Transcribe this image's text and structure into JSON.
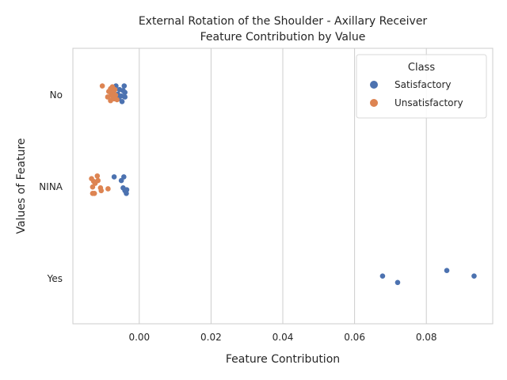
{
  "chart_data": {
    "type": "scatter",
    "title": "External Rotation of the Shoulder - Axillary Receiver",
    "subtitle": "Feature Contribution by Value",
    "xlabel": "Feature Contribution",
    "ylabel": "Values of Feature",
    "xlim": [
      -0.0185,
      0.0985
    ],
    "x_ticks": [
      "0.00",
      "0.02",
      "0.04",
      "0.06",
      "0.08"
    ],
    "x_tick_values": [
      0.0,
      0.02,
      0.04,
      0.06,
      0.08
    ],
    "categories": [
      "No",
      "NINA",
      "Yes"
    ],
    "grid": "vertical",
    "legend": {
      "title": "Class",
      "placement": "top-right"
    },
    "series": [
      {
        "name": "Satisfactory",
        "color": "#4c72b0",
        "points": [
          {
            "category": "No",
            "x": -0.0065,
            "jitter": -0.09
          },
          {
            "category": "No",
            "x": -0.0042,
            "jitter": -0.09
          },
          {
            "category": "No",
            "x": -0.0055,
            "jitter": -0.05
          },
          {
            "category": "No",
            "x": -0.0045,
            "jitter": -0.04
          },
          {
            "category": "No",
            "x": -0.004,
            "jitter": -0.02
          },
          {
            "category": "No",
            "x": -0.006,
            "jitter": 0.0
          },
          {
            "category": "No",
            "x": -0.005,
            "jitter": 0.02
          },
          {
            "category": "No",
            "x": -0.004,
            "jitter": 0.03
          },
          {
            "category": "No",
            "x": -0.0058,
            "jitter": 0.05
          },
          {
            "category": "No",
            "x": -0.0048,
            "jitter": 0.08
          },
          {
            "category": "NINA",
            "x": -0.007,
            "jitter": -0.1
          },
          {
            "category": "NINA",
            "x": -0.0043,
            "jitter": -0.1
          },
          {
            "category": "NINA",
            "x": -0.005,
            "jitter": -0.06
          },
          {
            "category": "NINA",
            "x": -0.0045,
            "jitter": 0.02
          },
          {
            "category": "NINA",
            "x": -0.0035,
            "jitter": 0.04
          },
          {
            "category": "NINA",
            "x": -0.004,
            "jitter": 0.05
          },
          {
            "category": "NINA",
            "x": -0.0036,
            "jitter": 0.08
          },
          {
            "category": "Yes",
            "x": 0.0857,
            "jitter": -0.08
          },
          {
            "category": "Yes",
            "x": 0.0678,
            "jitter": -0.02
          },
          {
            "category": "Yes",
            "x": 0.0933,
            "jitter": -0.02
          },
          {
            "category": "Yes",
            "x": 0.072,
            "jitter": 0.05
          }
        ]
      },
      {
        "name": "Unsatisfactory",
        "color": "#dd8452",
        "points": [
          {
            "category": "No",
            "x": -0.0103,
            "jitter": -0.09
          },
          {
            "category": "No",
            "x": -0.0075,
            "jitter": -0.08
          },
          {
            "category": "No",
            "x": -0.008,
            "jitter": -0.06
          },
          {
            "category": "No",
            "x": -0.0068,
            "jitter": -0.05
          },
          {
            "category": "No",
            "x": -0.0085,
            "jitter": -0.03
          },
          {
            "category": "No",
            "x": -0.0072,
            "jitter": -0.02
          },
          {
            "category": "No",
            "x": -0.0078,
            "jitter": 0.0
          },
          {
            "category": "No",
            "x": -0.0066,
            "jitter": 0.01
          },
          {
            "category": "No",
            "x": -0.0088,
            "jitter": 0.03
          },
          {
            "category": "No",
            "x": -0.0074,
            "jitter": 0.03
          },
          {
            "category": "No",
            "x": -0.007,
            "jitter": 0.05
          },
          {
            "category": "No",
            "x": -0.008,
            "jitter": 0.07
          },
          {
            "category": "No",
            "x": -0.0062,
            "jitter": 0.06
          },
          {
            "category": "NINA",
            "x": -0.0117,
            "jitter": -0.11
          },
          {
            "category": "NINA",
            "x": -0.0133,
            "jitter": -0.08
          },
          {
            "category": "NINA",
            "x": -0.0115,
            "jitter": -0.06
          },
          {
            "category": "NINA",
            "x": -0.0127,
            "jitter": -0.05
          },
          {
            "category": "NINA",
            "x": -0.0123,
            "jitter": -0.03
          },
          {
            "category": "NINA",
            "x": -0.013,
            "jitter": 0.01
          },
          {
            "category": "NINA",
            "x": -0.0108,
            "jitter": 0.02
          },
          {
            "category": "NINA",
            "x": -0.0087,
            "jitter": 0.03
          },
          {
            "category": "NINA",
            "x": -0.0106,
            "jitter": 0.05
          },
          {
            "category": "NINA",
            "x": -0.013,
            "jitter": 0.08
          },
          {
            "category": "NINA",
            "x": -0.0125,
            "jitter": 0.08
          }
        ]
      }
    ]
  }
}
